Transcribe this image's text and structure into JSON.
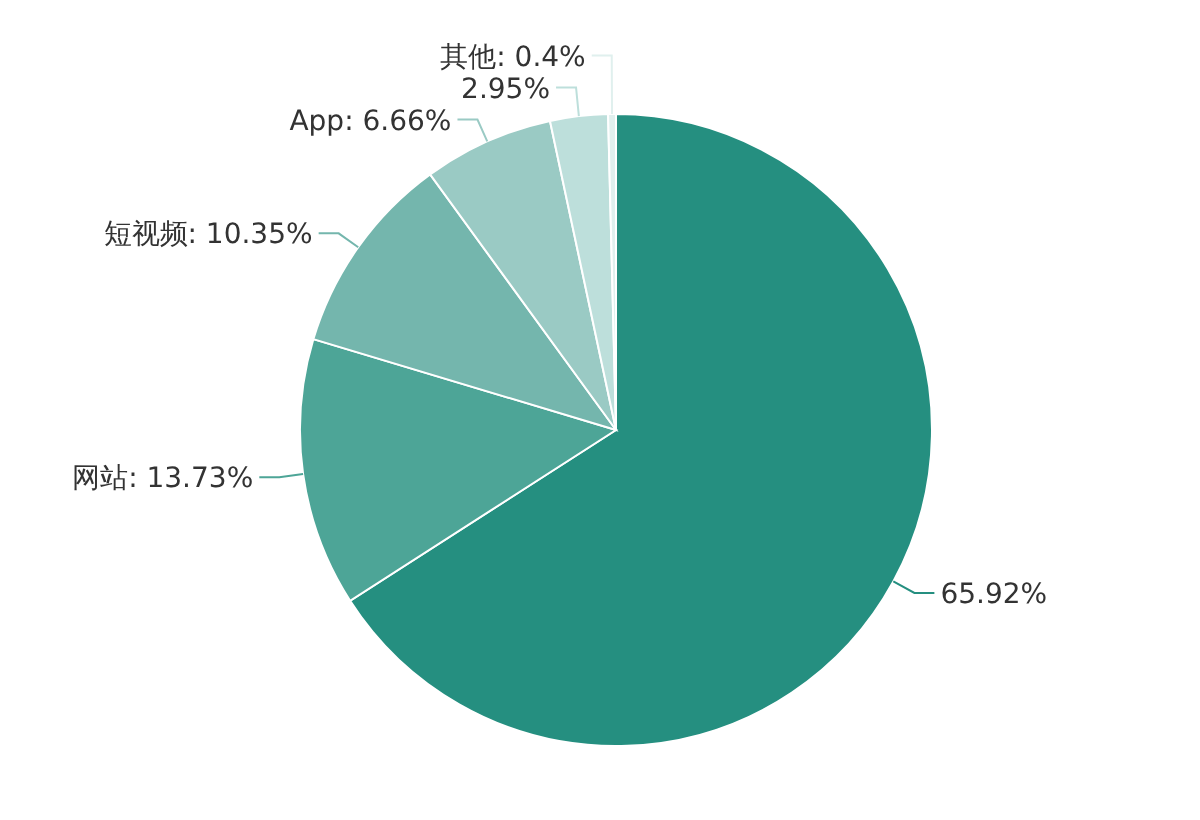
{
  "chart_data": {
    "type": "pie",
    "categories": [
      null,
      "网站",
      "短视频",
      "App",
      null,
      "其他"
    ],
    "values": [
      65.92,
      13.73,
      10.35,
      6.66,
      2.95,
      0.4
    ],
    "value_labels": [
      "65.92%",
      "13.73%",
      "10.35%",
      "6.66%",
      "2.95%",
      "0.4%"
    ],
    "colors": [
      "#258f80",
      "#4da597",
      "#74b6ad",
      "#9acac4",
      "#bddfdb",
      "#e0f0ee"
    ]
  }
}
